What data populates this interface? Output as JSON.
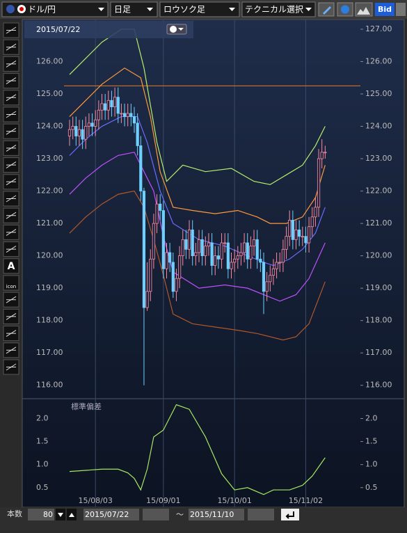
{
  "toolbar": {
    "pair": "ドル/円",
    "period": "日足",
    "chart_style": "ロウソク足",
    "technical": "テクニカル選択",
    "bid": "Bid"
  },
  "tools": {
    "text_tool": "A",
    "icon_tool": "icon"
  },
  "chart_data": [
    {
      "type": "candlestick",
      "header": "2015/07/22",
      "categories": [
        null,
        null,
        null,
        null,
        null,
        null,
        null,
        null,
        "15/08/03",
        null,
        null,
        null,
        null,
        null,
        null,
        null,
        null,
        null,
        null,
        null,
        null,
        null,
        null,
        null,
        null,
        null,
        null,
        null,
        null,
        "15/09/01",
        null,
        null,
        null,
        null,
        null,
        null,
        null,
        null,
        null,
        null,
        null,
        null,
        null,
        null,
        null,
        null,
        null,
        null,
        null,
        null,
        null,
        "15/10/01",
        null,
        null,
        null,
        null,
        null,
        null,
        null,
        null,
        null,
        null,
        null,
        null,
        null,
        null,
        null,
        null,
        null,
        null,
        null,
        null,
        null,
        "15/11/02",
        null,
        null,
        null,
        null,
        null,
        null
      ],
      "open": [
        123.7,
        123.9,
        124.0,
        123.7,
        123.9,
        123.6,
        124.0,
        124.1,
        124.0,
        124.2,
        124.5,
        124.7,
        124.5,
        124.8,
        124.6,
        124.9,
        124.4,
        124.4,
        124.3,
        124.4,
        124.3,
        124.1,
        123.4,
        122.0,
        118.4,
        118.9,
        119.9,
        121.0,
        121.6,
        121.4,
        119.6,
        120.1,
        119.8,
        118.9,
        119.3,
        120.0,
        120.5,
        120.2,
        120.8,
        120.0,
        120.1,
        120.5,
        120.0,
        120.3,
        120.4,
        119.7,
        120.0,
        119.9,
        120.4,
        120.4,
        119.6,
        119.8,
        119.9,
        120.0,
        120.1,
        120.4,
        119.9,
        120.3,
        120.5,
        119.9,
        119.8,
        118.9,
        119.2,
        119.4,
        119.6,
        119.8,
        119.8,
        120.2,
        120.6,
        121.1,
        120.5,
        120.8,
        120.6,
        120.6,
        120.4,
        120.9,
        121.2,
        121.5,
        123.0,
        123.2
      ],
      "high": [
        124.2,
        124.3,
        124.3,
        124.2,
        124.2,
        124.3,
        124.4,
        124.4,
        124.5,
        124.8,
        125.0,
        125.0,
        125.1,
        125.1,
        125.2,
        125.2,
        124.7,
        124.7,
        124.7,
        124.7,
        124.6,
        124.4,
        123.7,
        122.1,
        119.8,
        120.2,
        121.3,
        121.9,
        121.9,
        121.7,
        120.4,
        120.4,
        120.1,
        119.6,
        120.3,
        120.8,
        120.8,
        121.1,
        121.1,
        120.4,
        120.8,
        120.8,
        120.6,
        120.7,
        120.7,
        120.3,
        120.3,
        120.7,
        120.7,
        120.7,
        120.1,
        120.2,
        120.3,
        120.4,
        120.7,
        120.7,
        120.6,
        120.8,
        120.8,
        120.2,
        120.1,
        119.5,
        119.7,
        119.9,
        120.1,
        120.1,
        120.5,
        120.9,
        121.4,
        121.4,
        121.1,
        121.1,
        120.9,
        120.9,
        121.2,
        121.5,
        121.8,
        123.3,
        123.6,
        123.4
      ],
      "low": [
        123.4,
        123.6,
        123.4,
        123.4,
        123.3,
        123.3,
        123.7,
        123.7,
        123.7,
        123.9,
        124.2,
        124.2,
        124.2,
        124.3,
        124.3,
        124.1,
        124.1,
        124.0,
        124.0,
        124.0,
        123.8,
        123.1,
        121.7,
        116.0,
        118.3,
        118.6,
        119.6,
        120.7,
        121.1,
        119.3,
        119.3,
        119.5,
        118.7,
        118.6,
        119.0,
        119.7,
        119.9,
        119.9,
        119.7,
        119.7,
        119.8,
        119.7,
        119.7,
        120.0,
        119.4,
        119.4,
        119.6,
        119.6,
        120.1,
        119.3,
        119.3,
        119.5,
        119.6,
        119.7,
        119.8,
        119.6,
        119.6,
        120.0,
        119.6,
        119.5,
        118.2,
        118.6,
        118.9,
        119.1,
        119.3,
        119.5,
        119.5,
        119.9,
        120.3,
        120.2,
        120.2,
        120.3,
        120.3,
        120.1,
        120.1,
        120.6,
        120.9,
        121.2,
        122.7,
        123.0
      ],
      "close": [
        123.9,
        124.0,
        123.7,
        123.9,
        123.6,
        124.0,
        124.1,
        124.0,
        124.2,
        124.5,
        124.7,
        124.5,
        124.8,
        124.6,
        124.9,
        124.4,
        124.4,
        124.3,
        124.4,
        124.3,
        124.1,
        123.4,
        122.0,
        118.4,
        118.9,
        119.9,
        121.0,
        121.6,
        121.4,
        119.6,
        120.1,
        119.8,
        118.9,
        119.3,
        120.0,
        120.5,
        120.2,
        120.8,
        120.0,
        120.1,
        120.5,
        120.0,
        120.3,
        120.4,
        119.7,
        120.0,
        119.9,
        120.4,
        120.4,
        119.6,
        119.8,
        119.9,
        120.0,
        120.1,
        120.4,
        119.9,
        120.3,
        120.5,
        119.9,
        119.8,
        118.9,
        119.2,
        119.4,
        119.6,
        119.8,
        119.8,
        120.2,
        120.6,
        121.1,
        120.5,
        120.8,
        120.6,
        120.6,
        120.4,
        120.9,
        121.2,
        121.5,
        123.0,
        123.2,
        123.2
      ],
      "up_color": "#ff8aa0",
      "down_color": "#6fd0ff",
      "series": [
        {
          "color": "#b6ef6a",
          "x": [
            0,
            5,
            10,
            16,
            20,
            23,
            27,
            30,
            35,
            42,
            50,
            57,
            62,
            67,
            72,
            76,
            79
          ],
          "values": [
            125.6,
            126.1,
            126.6,
            127.0,
            127.0,
            125.8,
            123.5,
            122.3,
            122.8,
            122.6,
            122.7,
            122.3,
            122.2,
            122.5,
            122.8,
            123.4,
            124.0
          ]
        },
        {
          "color": "#ff9a3c",
          "x": [
            0,
            5,
            10,
            17,
            22,
            25,
            28,
            32,
            38,
            45,
            52,
            58,
            62,
            67,
            72,
            76,
            79
          ],
          "values": [
            124.3,
            124.8,
            125.3,
            125.8,
            125.5,
            124.3,
            122.6,
            121.5,
            121.4,
            121.3,
            121.4,
            121.2,
            121.0,
            121.0,
            121.2,
            121.8,
            122.8
          ]
        },
        {
          "color": "#6a6cff",
          "x": [
            0,
            5,
            10,
            16,
            21,
            24,
            28,
            32,
            40,
            48,
            55,
            60,
            63,
            68,
            72,
            76,
            79
          ],
          "values": [
            123.1,
            123.6,
            124.0,
            124.3,
            124.3,
            123.5,
            122.0,
            121.0,
            120.5,
            120.3,
            120.0,
            119.8,
            119.7,
            119.9,
            120.2,
            120.7,
            121.5
          ]
        },
        {
          "color": "#c050ff",
          "x": [
            0,
            5,
            10,
            15,
            20,
            23,
            26,
            29,
            32,
            40,
            48,
            55,
            60,
            65,
            70,
            74,
            79
          ],
          "values": [
            121.9,
            122.4,
            122.8,
            123.1,
            123.2,
            122.6,
            122.0,
            120.6,
            119.5,
            119.0,
            119.1,
            119.0,
            118.8,
            118.6,
            118.8,
            119.3,
            120.4
          ]
        },
        {
          "color": "#b0582a",
          "x": [
            0,
            5,
            10,
            15,
            20,
            23,
            26,
            29,
            32,
            38,
            45,
            52,
            58,
            66,
            70,
            74,
            79
          ],
          "values": [
            120.7,
            121.2,
            121.6,
            121.9,
            122.0,
            121.5,
            120.5,
            119.4,
            118.2,
            117.9,
            117.8,
            117.7,
            117.6,
            117.4,
            117.5,
            117.9,
            119.2
          ]
        }
      ],
      "hline": {
        "value": 125.25,
        "color": "#e07a2a"
      },
      "ylim": [
        115.65,
        127.3
      ],
      "yticks": [
        {
          "value": 116,
          "label": "116.00"
        },
        {
          "value": 117,
          "label": "117.00"
        },
        {
          "value": 118,
          "label": "118.00"
        },
        {
          "value": 119,
          "label": "119.00"
        },
        {
          "value": 120,
          "label": "120.00"
        },
        {
          "value": 121,
          "label": "121.00"
        },
        {
          "value": 122,
          "label": "122.00"
        },
        {
          "value": 123,
          "label": "123.00"
        },
        {
          "value": 124,
          "label": "124.00"
        },
        {
          "value": 125,
          "label": "125.00"
        },
        {
          "value": 126,
          "label": "126.00"
        },
        {
          "value": 127,
          "label": "127.00"
        }
      ]
    },
    {
      "type": "line",
      "title": "標準偏差",
      "color": "#a6e860",
      "x": [
        0,
        10,
        15,
        18,
        20,
        22,
        24,
        26,
        29,
        33,
        37,
        42,
        47,
        51,
        55,
        60,
        63,
        68,
        72,
        75,
        79
      ],
      "values": [
        0.85,
        0.9,
        0.9,
        0.82,
        0.7,
        0.45,
        0.9,
        1.6,
        1.75,
        2.3,
        2.2,
        1.6,
        0.8,
        0.45,
        0.5,
        0.35,
        0.45,
        0.45,
        0.55,
        0.75,
        1.15
      ],
      "ylim": [
        0.3,
        2.4
      ],
      "yticks": [
        0.5,
        {
          "value": 1,
          "label": "1.0"
        },
        1.5,
        {
          "value": 2,
          "label": "2.0"
        }
      ]
    }
  ],
  "footer": {
    "count_label": "本数",
    "count": "80",
    "start": "2015/07/22",
    "tilde": "〜",
    "end": "2015/11/10"
  }
}
